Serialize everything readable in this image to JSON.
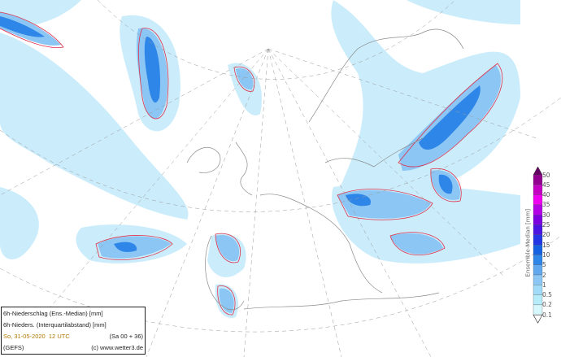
{
  "info": {
    "line1": "6h-Niederschlag (Ens.-Median) [mm]",
    "line2": "6h-Nieders. (Interquartilabstand) [mm]",
    "date": "So, 31-05-2020",
    "time": "12 UTC",
    "run": "(Sa 00 + 36)",
    "model": "(GEFS)",
    "credit": "(c) www.wetter3.de"
  },
  "colorbar": {
    "title": "Ensemble-Median [mm]",
    "levels": [
      "50",
      "45",
      "40",
      "35",
      "30",
      "25",
      "20",
      "15",
      "10",
      "5",
      "2",
      "1",
      "0.5",
      "0.2",
      "0.1"
    ],
    "colors": [
      "#d6f7fb",
      "#b6ecfa",
      "#a2dbf8",
      "#8cc6f4",
      "#62a8ef",
      "#2e86e8",
      "#1462e2",
      "#2236e6",
      "#4a14e2",
      "#7c00e0",
      "#b400e6",
      "#f000f0",
      "#c400c4",
      "#92008f"
    ],
    "over_color": "#640064",
    "under_color": "#ffffff"
  },
  "colors": {
    "contour": "#e0304a",
    "coast": "#8a8a8a",
    "grid": "#9a9a9a"
  }
}
